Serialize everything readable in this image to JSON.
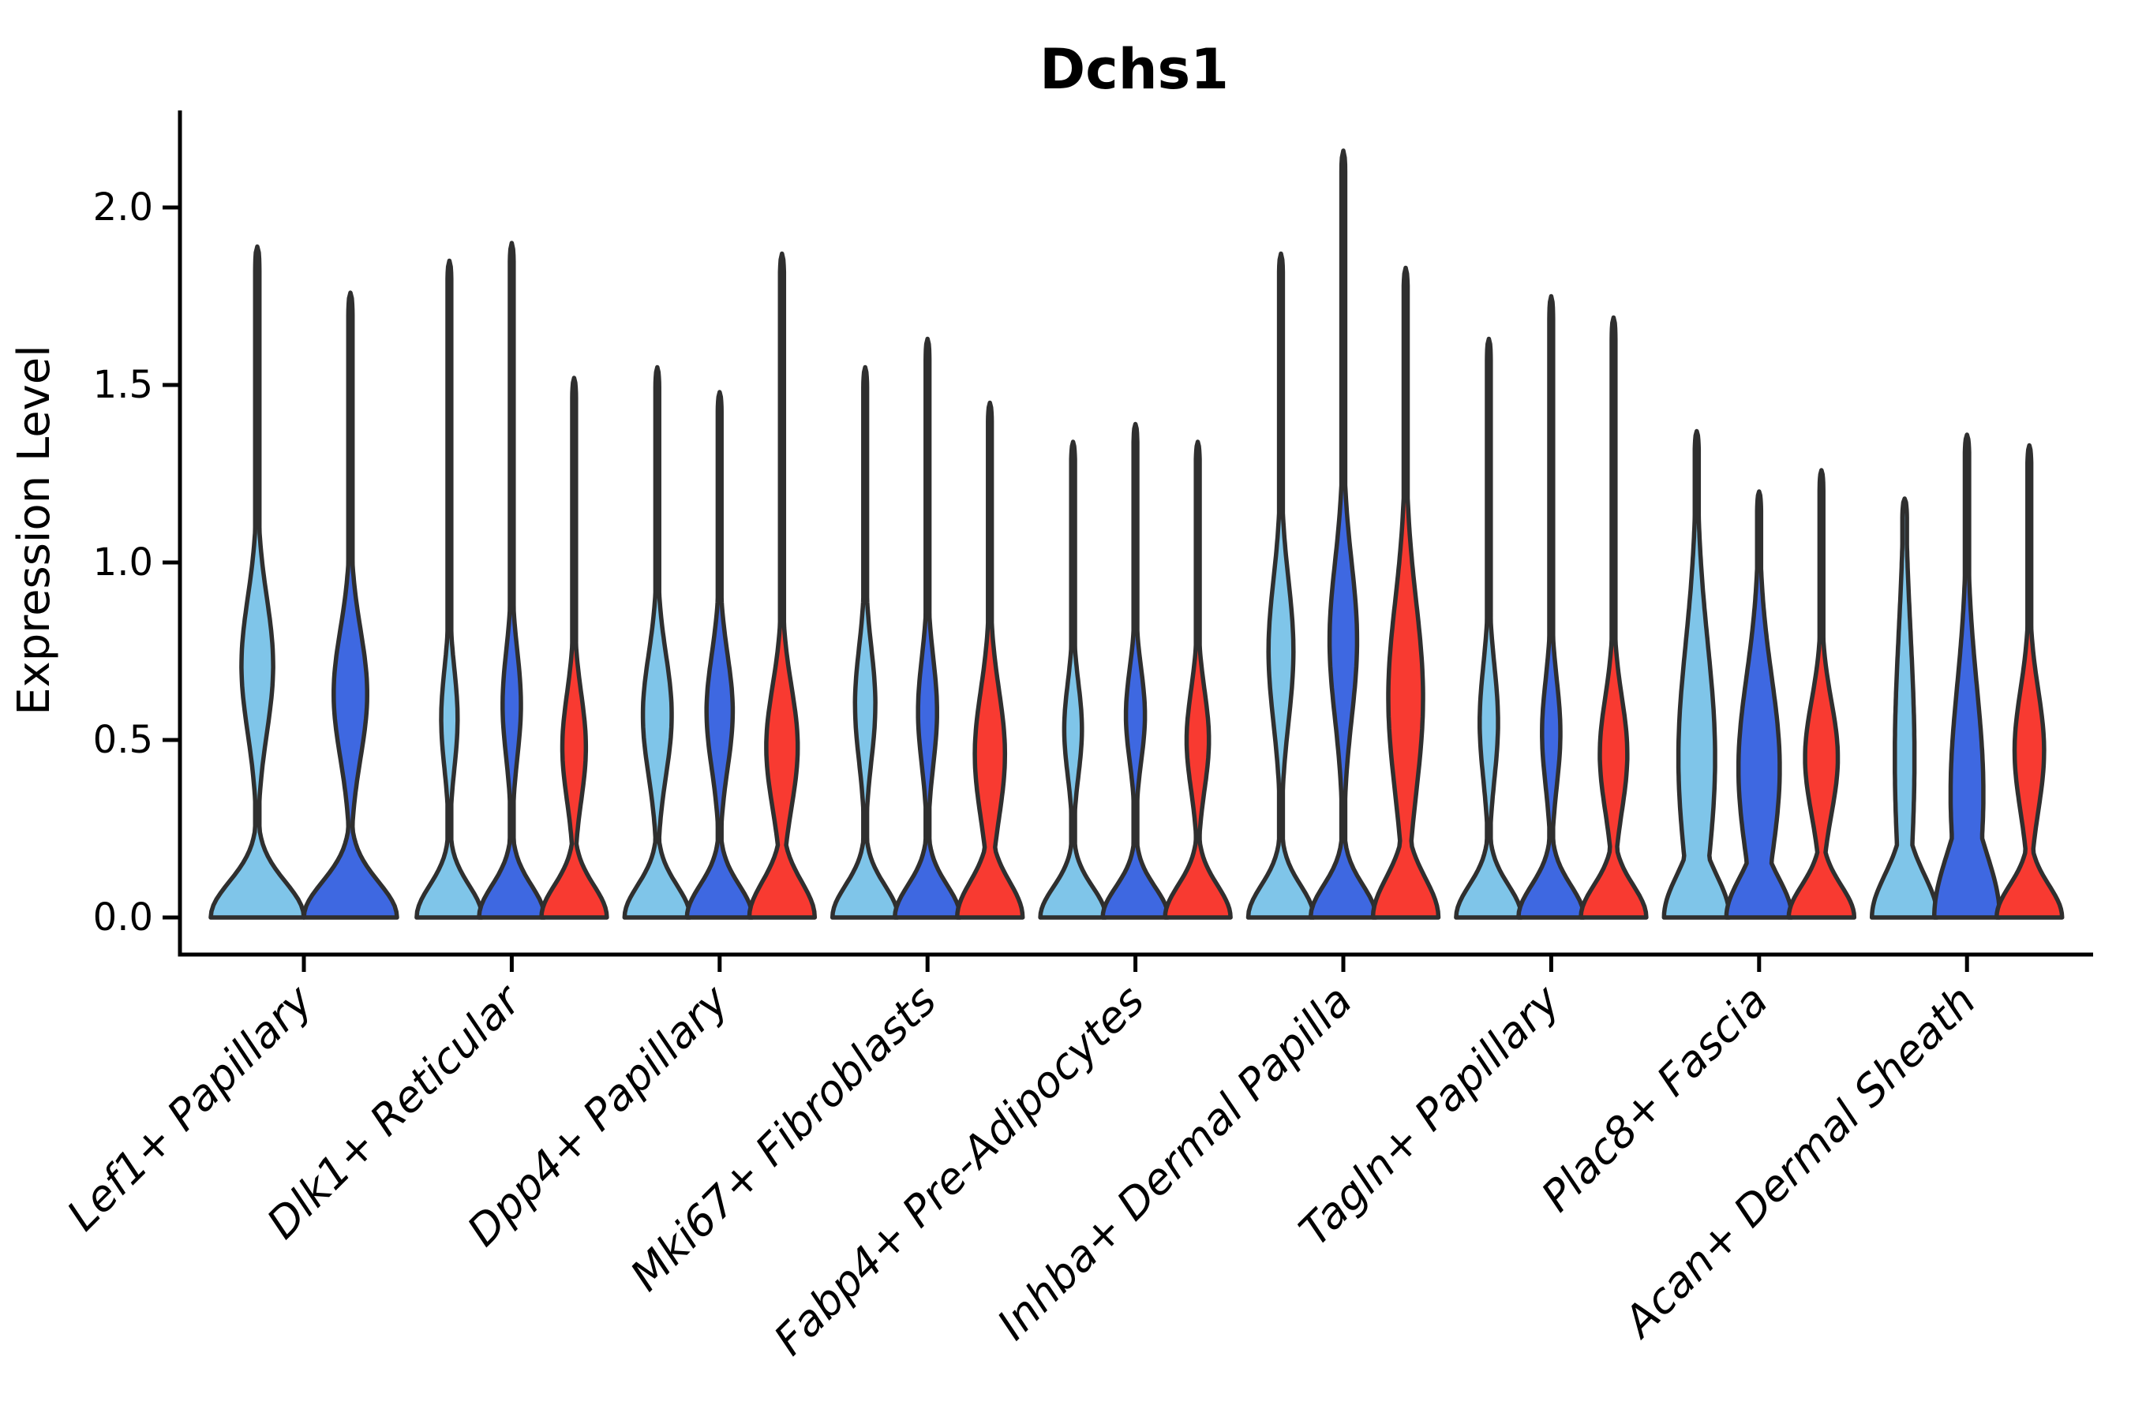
{
  "chart_data": {
    "type": "violin",
    "title": "Dchs1",
    "xlabel": "",
    "ylabel": "Expression Level",
    "yticks": [
      "0.0",
      "0.5",
      "1.0",
      "1.5",
      "2.0"
    ],
    "ylim": [
      -0.1,
      2.27
    ],
    "grid": false,
    "legend_position": "none",
    "palette": {
      "light_blue": "#7FC5E9",
      "dark_blue": "#3E68E1",
      "red": "#F83A31",
      "edge": "#2F2F2F",
      "spine": "#000000"
    },
    "series_order": [
      "light_blue",
      "dark_blue",
      "red"
    ],
    "categories": [
      "Lef1+ Papillary",
      "Dlk1+ Reticular",
      "Dpp4+ Papillary",
      "Mki67+ Fibroblasts",
      "Fabp4+ Pre-Adipocytes",
      "Inhba+ Dermal Papilla",
      "Tagln+ Papillary",
      "Plac8+ Fascia",
      "Acan+ Dermal Sheath"
    ],
    "groups": [
      {
        "category": "Lef1+ Papillary",
        "violins": [
          {
            "color": "light_blue",
            "max": 1.89,
            "base_s": 0.1,
            "bulges": [
              {
                "c": 0.71,
                "s": 0.19,
                "a": 0.34
              }
            ],
            "spike_w": 0.045
          },
          {
            "color": "dark_blue",
            "max": 1.76,
            "base_s": 0.1,
            "bulges": [
              {
                "c": 0.63,
                "s": 0.18,
                "a": 0.36
              }
            ],
            "spike_w": 0.045
          }
        ]
      },
      {
        "category": "Dlk1+ Reticular",
        "violins": [
          {
            "color": "light_blue",
            "max": 1.85,
            "base_s": 0.09,
            "bulges": [
              {
                "c": 0.56,
                "s": 0.14,
                "a": 0.25
              }
            ],
            "spike_w": 0.055
          },
          {
            "color": "dark_blue",
            "max": 1.9,
            "base_s": 0.09,
            "bulges": [
              {
                "c": 0.6,
                "s": 0.15,
                "a": 0.28
              }
            ],
            "spike_w": 0.055
          },
          {
            "color": "red",
            "max": 1.52,
            "base_s": 0.09,
            "bulges": [
              {
                "c": 0.48,
                "s": 0.15,
                "a": 0.36
              }
            ],
            "spike_w": 0.055
          }
        ]
      },
      {
        "category": "Dpp4+ Papillary",
        "violins": [
          {
            "color": "light_blue",
            "max": 1.55,
            "base_s": 0.09,
            "bulges": [
              {
                "c": 0.57,
                "s": 0.17,
                "a": 0.44
              }
            ],
            "spike_w": 0.055
          },
          {
            "color": "dark_blue",
            "max": 1.48,
            "base_s": 0.09,
            "bulges": [
              {
                "c": 0.58,
                "s": 0.16,
                "a": 0.4
              }
            ],
            "spike_w": 0.055
          },
          {
            "color": "red",
            "max": 1.87,
            "base_s": 0.1,
            "bulges": [
              {
                "c": 0.48,
                "s": 0.17,
                "a": 0.48
              }
            ],
            "spike_w": 0.06
          }
        ]
      },
      {
        "category": "Mki67+ Fibroblasts",
        "violins": [
          {
            "color": "light_blue",
            "max": 1.55,
            "base_s": 0.09,
            "bulges": [
              {
                "c": 0.6,
                "s": 0.16,
                "a": 0.31
              }
            ],
            "spike_w": 0.055
          },
          {
            "color": "dark_blue",
            "max": 1.63,
            "base_s": 0.09,
            "bulges": [
              {
                "c": 0.58,
                "s": 0.15,
                "a": 0.29
              }
            ],
            "spike_w": 0.055
          },
          {
            "color": "red",
            "max": 1.45,
            "base_s": 0.1,
            "bulges": [
              {
                "c": 0.46,
                "s": 0.18,
                "a": 0.46
              }
            ],
            "spike_w": 0.055
          }
        ]
      },
      {
        "category": "Fabp4+ Pre-Adipocytes",
        "violins": [
          {
            "color": "light_blue",
            "max": 1.34,
            "base_s": 0.085,
            "bulges": [
              {
                "c": 0.53,
                "s": 0.13,
                "a": 0.27
              }
            ],
            "spike_w": 0.05
          },
          {
            "color": "dark_blue",
            "max": 1.39,
            "base_s": 0.085,
            "bulges": [
              {
                "c": 0.57,
                "s": 0.13,
                "a": 0.29
              }
            ],
            "spike_w": 0.05
          },
          {
            "color": "red",
            "max": 1.34,
            "base_s": 0.09,
            "bulges": [
              {
                "c": 0.5,
                "s": 0.14,
                "a": 0.34
              }
            ],
            "spike_w": 0.05
          }
        ]
      },
      {
        "category": "Inhba+ Dermal Papilla",
        "violins": [
          {
            "color": "light_blue",
            "max": 1.87,
            "base_s": 0.09,
            "bulges": [
              {
                "c": 0.75,
                "s": 0.2,
                "a": 0.38
              }
            ],
            "spike_w": 0.055
          },
          {
            "color": "dark_blue",
            "max": 2.16,
            "base_s": 0.09,
            "bulges": [
              {
                "c": 0.78,
                "s": 0.22,
                "a": 0.42
              }
            ],
            "spike_w": 0.055
          },
          {
            "color": "red",
            "max": 1.83,
            "base_s": 0.11,
            "bulges": [
              {
                "c": 0.62,
                "s": 0.27,
                "a": 0.53
              }
            ],
            "spike_w": 0.06
          }
        ]
      },
      {
        "category": "Tagln+ Papillary",
        "violins": [
          {
            "color": "light_blue",
            "max": 1.63,
            "base_s": 0.09,
            "bulges": [
              {
                "c": 0.55,
                "s": 0.16,
                "a": 0.28
              }
            ],
            "spike_w": 0.055
          },
          {
            "color": "dark_blue",
            "max": 1.75,
            "base_s": 0.09,
            "bulges": [
              {
                "c": 0.52,
                "s": 0.15,
                "a": 0.28
              }
            ],
            "spike_w": 0.055
          },
          {
            "color": "red",
            "max": 1.69,
            "base_s": 0.09,
            "bulges": [
              {
                "c": 0.46,
                "s": 0.16,
                "a": 0.42
              }
            ],
            "spike_w": 0.055
          }
        ]
      },
      {
        "category": "Plac8+ Fascia",
        "violins": [
          {
            "color": "light_blue",
            "max": 1.37,
            "base_s": 0.12,
            "bulges": [
              {
                "c": 0.45,
                "s": 0.32,
                "a": 0.56
              }
            ],
            "spike_w": 0.06
          },
          {
            "color": "dark_blue",
            "max": 1.2,
            "base_s": 0.11,
            "bulges": [
              {
                "c": 0.42,
                "s": 0.26,
                "a": 0.63
              }
            ],
            "spike_w": 0.06
          },
          {
            "color": "red",
            "max": 1.26,
            "base_s": 0.09,
            "bulges": [
              {
                "c": 0.45,
                "s": 0.16,
                "a": 0.5
              }
            ],
            "spike_w": 0.055
          }
        ]
      },
      {
        "category": "Acan+ Dermal Sheath",
        "violins": [
          {
            "color": "light_blue",
            "max": 1.18,
            "base_s": 0.12,
            "bulges": [
              {
                "c": 0.45,
                "s": 0.35,
                "a": 0.3
              }
            ],
            "spike_w": 0.07
          },
          {
            "color": "dark_blue",
            "max": 1.36,
            "base_s": 0.18,
            "bulges": [
              {
                "c": 0.35,
                "s": 0.3,
                "a": 0.5
              }
            ],
            "spike_w": 0.065
          },
          {
            "color": "red",
            "max": 1.33,
            "base_s": 0.09,
            "bulges": [
              {
                "c": 0.47,
                "s": 0.17,
                "a": 0.45
              }
            ],
            "spike_w": 0.055
          }
        ]
      }
    ]
  }
}
